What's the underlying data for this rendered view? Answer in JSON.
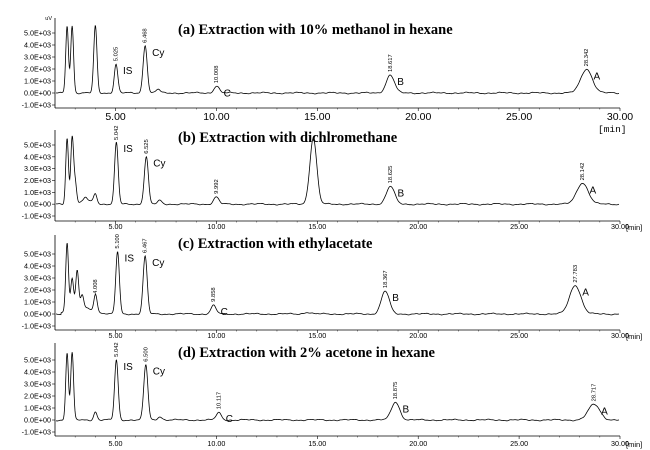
{
  "chart_data": [
    {
      "type": "line",
      "title": "(a) Extraction with 10% methanol in hexane",
      "y_unit": "uV",
      "x_unit": "[min]",
      "xlim": [
        2.0,
        30.0
      ],
      "ylim": [
        -1000,
        5600
      ],
      "y_ticks": [
        "5.0E+03",
        "4.0E+03",
        "3.0E+03",
        "2.0E+03",
        "1.0E+03",
        "0.0E+00",
        "-1.0E+03"
      ],
      "x_ticks": [
        "5.00",
        "10.00",
        "15.00",
        "20.00",
        "25.00",
        "30.00"
      ],
      "peaks": [
        {
          "rt": 2.6,
          "height": 5600
        },
        {
          "rt": 2.85,
          "height": 5600
        },
        {
          "rt": 4.0,
          "height": 5600
        },
        {
          "rt": 5.025,
          "height": 2400,
          "label": "IS",
          "rt_label": "5.025"
        },
        {
          "rt": 6.468,
          "height": 4000,
          "label": "Cy",
          "rt_label": "6.468"
        },
        {
          "rt": 7.1,
          "height": 300
        },
        {
          "rt": 10.008,
          "height": 600,
          "label": "C",
          "rt_label": "10.008"
        },
        {
          "rt": 18.617,
          "height": 1500,
          "label": "B",
          "rt_label": "18.617"
        },
        {
          "rt": 28.342,
          "height": 2000,
          "label": "A",
          "rt_label": "28.342"
        }
      ]
    },
    {
      "type": "line",
      "title": "(b) Extraction with dichlromethane",
      "y_unit": "",
      "x_unit": "[min]",
      "xlim": [
        2.0,
        30.0
      ],
      "ylim": [
        -1000,
        5600
      ],
      "y_ticks": [
        "5.0E+03",
        "4.0E+03",
        "3.0E+03",
        "2.0E+03",
        "1.0E+03",
        "0.0E+00",
        "-1.0E+03"
      ],
      "x_ticks": [
        "5.00",
        "10.00",
        "15.00",
        "20.00",
        "25.00",
        "30.00"
      ],
      "peaks": [
        {
          "rt": 2.6,
          "height": 5600
        },
        {
          "rt": 2.85,
          "height": 5600
        },
        {
          "rt": 3.0,
          "height": 1800
        },
        {
          "rt": 3.5,
          "height": 300
        },
        {
          "rt": 4.0,
          "height": 800
        },
        {
          "rt": 5.042,
          "height": 5200,
          "label": "IS",
          "rt_label": "5.042"
        },
        {
          "rt": 6.525,
          "height": 4000,
          "label": "Cy",
          "rt_label": "6.525"
        },
        {
          "rt": 7.2,
          "height": 300
        },
        {
          "rt": 9.992,
          "height": 600,
          "label": "",
          "rt_label": "9.992"
        },
        {
          "rt": 14.8,
          "height": 5600
        },
        {
          "rt": 18.625,
          "height": 1500,
          "label": "B",
          "rt_label": "18.625"
        },
        {
          "rt": 28.142,
          "height": 1800,
          "label": "A",
          "rt_label": "28.142"
        }
      ]
    },
    {
      "type": "line",
      "title": "(c) Extraction with ethylacetate",
      "y_unit": "",
      "x_unit": "[min]",
      "xlim": [
        2.0,
        30.0
      ],
      "ylim": [
        -1000,
        5600
      ],
      "y_ticks": [
        "5.0E+03",
        "4.0E+03",
        "3.0E+03",
        "2.0E+03",
        "1.0E+03",
        "0.0E+00",
        "-1.0E+03"
      ],
      "x_ticks": [
        "5.00",
        "10.00",
        "15.00",
        "20.00",
        "25.00",
        "30.00"
      ],
      "peaks": [
        {
          "rt": 2.6,
          "height": 5600
        },
        {
          "rt": 2.85,
          "height": 2500
        },
        {
          "rt": 3.1,
          "height": 3000
        },
        {
          "rt": 3.35,
          "height": 1000
        },
        {
          "rt": 4.008,
          "height": 1500,
          "label": "",
          "rt_label": "4.008"
        },
        {
          "rt": 5.1,
          "height": 5200,
          "label": "IS",
          "rt_label": "5.100"
        },
        {
          "rt": 6.467,
          "height": 4800,
          "label": "Cy",
          "rt_label": "6.467"
        },
        {
          "rt": 9.858,
          "height": 700,
          "label": "C",
          "rt_label": "9.858"
        },
        {
          "rt": 14.5,
          "height": 150
        },
        {
          "rt": 18.367,
          "height": 1900,
          "label": "B",
          "rt_label": "18.367"
        },
        {
          "rt": 27.783,
          "height": 2400,
          "label": "A",
          "rt_label": "27.783"
        }
      ]
    },
    {
      "type": "line",
      "title": "(d) Extraction with 2% acetone in hexane",
      "y_unit": "",
      "x_unit": "[min]",
      "xlim": [
        2.0,
        30.0
      ],
      "ylim": [
        -1000,
        5600
      ],
      "y_ticks": [
        "5.0E+03",
        "4.0E+03",
        "3.0E+03",
        "2.0E+03",
        "1.0E+03",
        "0.0E+00",
        "-1.0E+03"
      ],
      "x_ticks": [
        "5.00",
        "10.00",
        "15.00",
        "20.00",
        "25.00",
        "30.00"
      ],
      "peaks": [
        {
          "rt": 2.6,
          "height": 5600
        },
        {
          "rt": 2.85,
          "height": 5600
        },
        {
          "rt": 4.0,
          "height": 700
        },
        {
          "rt": 5.042,
          "height": 5000,
          "label": "IS",
          "rt_label": "5.042"
        },
        {
          "rt": 6.5,
          "height": 4600,
          "label": "Cy",
          "rt_label": "6.500"
        },
        {
          "rt": 7.2,
          "height": 300
        },
        {
          "rt": 10.117,
          "height": 600,
          "label": "C",
          "rt_label": "10.117"
        },
        {
          "rt": 18.875,
          "height": 1500,
          "label": "B",
          "rt_label": "18.875"
        },
        {
          "rt": 28.717,
          "height": 1300,
          "label": "A",
          "rt_label": "28.717"
        }
      ]
    }
  ]
}
